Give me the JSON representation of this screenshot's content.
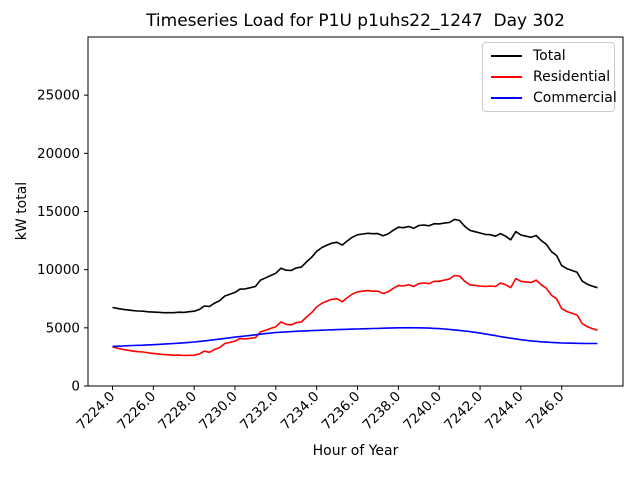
{
  "title": "Timeseries Load for P1U p1uhs22_1247  Day 302",
  "chart_data": {
    "type": "line",
    "title": "Timeseries Load for P1U p1uhs22_1247  Day 302",
    "xlabel": "Hour of Year",
    "ylabel": "kW total",
    "grid": false,
    "legend_position": "upper right",
    "xlim": [
      7222.8,
      7249.0
    ],
    "ylim": [
      0,
      30000
    ],
    "yticks": [
      0,
      5000,
      10000,
      15000,
      20000,
      25000
    ],
    "xticks": [
      7224,
      7226,
      7228,
      7230,
      7232,
      7234,
      7236,
      7238,
      7240,
      7242,
      7244,
      7246
    ],
    "xtick_labels": [
      "7224.0",
      "7226.0",
      "7228.0",
      "7230.0",
      "7232.0",
      "7234.0",
      "7236.0",
      "7238.0",
      "7240.0",
      "7242.0",
      "7244.0",
      "7246.0"
    ],
    "x": [
      7224.0,
      7224.25,
      7224.5,
      7224.75,
      7225.0,
      7225.25,
      7225.5,
      7225.75,
      7226.0,
      7226.25,
      7226.5,
      7226.75,
      7227.0,
      7227.25,
      7227.5,
      7227.75,
      7228.0,
      7228.25,
      7228.5,
      7228.75,
      7229.0,
      7229.25,
      7229.5,
      7229.75,
      7230.0,
      7230.25,
      7230.5,
      7230.75,
      7231.0,
      7231.25,
      7231.5,
      7231.75,
      7232.0,
      7232.25,
      7232.5,
      7232.75,
      7233.0,
      7233.25,
      7233.5,
      7233.75,
      7234.0,
      7234.25,
      7234.5,
      7234.75,
      7235.0,
      7235.25,
      7235.5,
      7235.75,
      7236.0,
      7236.25,
      7236.5,
      7236.75,
      7237.0,
      7237.25,
      7237.5,
      7237.75,
      7238.0,
      7238.25,
      7238.5,
      7238.75,
      7239.0,
      7239.25,
      7239.5,
      7239.75,
      7240.0,
      7240.25,
      7240.5,
      7240.75,
      7241.0,
      7241.25,
      7241.5,
      7241.75,
      7242.0,
      7242.25,
      7242.5,
      7242.75,
      7243.0,
      7243.25,
      7243.5,
      7243.75,
      7244.0,
      7244.25,
      7244.5,
      7244.75,
      7245.0,
      7245.25,
      7245.5,
      7245.75,
      7246.0,
      7246.25,
      7246.5,
      7246.75,
      7247.0,
      7247.25,
      7247.5,
      7247.75
    ],
    "series": [
      {
        "name": "Total",
        "color": "#000000",
        "values": [
          6750,
          6670,
          6590,
          6540,
          6480,
          6445,
          6430,
          6380,
          6350,
          6335,
          6300,
          6305,
          6300,
          6340,
          6330,
          6385,
          6430,
          6580,
          6880,
          6830,
          7130,
          7335,
          7740,
          7895,
          8050,
          8330,
          8350,
          8450,
          8550,
          9100,
          9300,
          9500,
          9700,
          10125,
          9950,
          9925,
          10150,
          10220,
          10670,
          11060,
          11580,
          11900,
          12115,
          12285,
          12350,
          12115,
          12475,
          12790,
          13000,
          13065,
          13125,
          13090,
          13100,
          12915,
          13075,
          13390,
          13650,
          13605,
          13710,
          13555,
          13800,
          13840,
          13775,
          13955,
          13930,
          14000,
          14065,
          14325,
          14230,
          13730,
          13375,
          13265,
          13150,
          13030,
          13005,
          12880,
          13100,
          12880,
          12570,
          13275,
          12980,
          12880,
          12780,
          12940,
          12500,
          12170,
          11545,
          11220,
          10350,
          10090,
          9930,
          9770,
          9020,
          8755,
          8580,
          8450
        ]
      },
      {
        "name": "Residential",
        "color": "#ff0000",
        "values": [
          3350,
          3250,
          3150,
          3080,
          3000,
          2950,
          2920,
          2850,
          2800,
          2760,
          2700,
          2680,
          2650,
          2660,
          2620,
          2640,
          2650,
          2750,
          3000,
          2900,
          3150,
          3300,
          3650,
          3750,
          3850,
          4080,
          4050,
          4100,
          4150,
          4650,
          4800,
          4950,
          5100,
          5500,
          5300,
          5250,
          5450,
          5500,
          5930,
          6300,
          6800,
          7100,
          7300,
          7450,
          7500,
          7250,
          7600,
          7900,
          8100,
          8150,
          8200,
          8150,
          8150,
          7950,
          8100,
          8400,
          8650,
          8600,
          8700,
          8550,
          8800,
          8850,
          8800,
          9000,
          9000,
          9100,
          9200,
          9500,
          9450,
          9000,
          8700,
          8650,
          8600,
          8550,
          8600,
          8550,
          8850,
          8700,
          8460,
          9230,
          9000,
          8950,
          8900,
          9100,
          8700,
          8400,
          7800,
          7500,
          6650,
          6400,
          6250,
          6100,
          5360,
          5100,
          4930,
          4800
        ]
      },
      {
        "name": "Commercial",
        "color": "#0000ff",
        "values": [
          3400,
          3420,
          3440,
          3460,
          3480,
          3495,
          3510,
          3530,
          3550,
          3575,
          3600,
          3625,
          3650,
          3680,
          3710,
          3745,
          3780,
          3830,
          3880,
          3930,
          3980,
          4035,
          4090,
          4145,
          4200,
          4250,
          4300,
          4350,
          4400,
          4450,
          4500,
          4550,
          4600,
          4625,
          4650,
          4675,
          4700,
          4720,
          4740,
          4760,
          4780,
          4800,
          4815,
          4835,
          4850,
          4865,
          4875,
          4890,
          4900,
          4915,
          4925,
          4940,
          4950,
          4965,
          4975,
          4990,
          5000,
          5005,
          5010,
          5005,
          5000,
          4990,
          4975,
          4955,
          4930,
          4900,
          4865,
          4825,
          4780,
          4730,
          4675,
          4615,
          4550,
          4480,
          4405,
          4330,
          4250,
          4180,
          4110,
          4045,
          3980,
          3930,
          3880,
          3840,
          3800,
          3770,
          3745,
          3720,
          3700,
          3690,
          3680,
          3670,
          3660,
          3655,
          3650,
          3650
        ]
      }
    ]
  }
}
